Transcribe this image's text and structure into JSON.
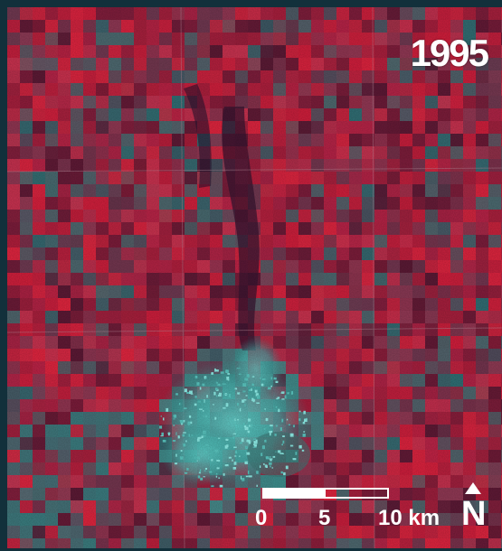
{
  "map": {
    "year_label": "1995",
    "scale": {
      "labels": [
        "0",
        "5",
        "10 km"
      ]
    },
    "north_label": "N",
    "colors": {
      "frame": "#12303b",
      "vegetation": "#d0203f",
      "vegetation_dark": "#6e1a33",
      "urban": "#4fc6c0",
      "text": "#ffffff"
    }
  }
}
